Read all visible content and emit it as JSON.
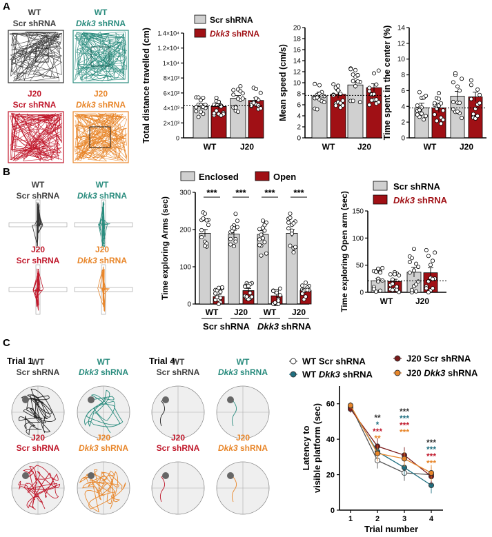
{
  "panels": {
    "A": "A",
    "B": "B",
    "C": "C"
  },
  "colors": {
    "wt_scr": "#404040",
    "wt_dkk": "#2a8c7e",
    "j20_scr": "#c0182b",
    "j20_dkk": "#e8862a",
    "bar_grey": "#d0d0d0",
    "bar_red": "#a01015",
    "c_wt_dkk": "#1f6f80",
    "c_j20_scr": "#7b1a1a"
  },
  "groups": {
    "wt": "WT",
    "j20": "J20",
    "scr": "Scr shRNA",
    "dkk_name": "Dkk3",
    "dkk_suffix": " shRNA"
  },
  "panelA": {
    "legend": {
      "scr": "Scr shRNA",
      "dkk_name": "Dkk3",
      "dkk_suffix": " shRNA"
    },
    "x_categories": [
      "WT",
      "J20"
    ]
  },
  "panelB": {
    "legend": {
      "enclosed": "Enclosed",
      "open": "Open",
      "scr": "Scr shRNA",
      "dkk_name": "Dkk3",
      "dkk_suffix": " shRNA"
    },
    "x_categories": [
      "WT",
      "J20",
      "WT",
      "J20"
    ],
    "sub_scr": "Scr shRNA",
    "sub_dkk_name": "Dkk3",
    "sub_dkk_suffix": " shRNA",
    "sig": [
      "***",
      "***",
      "***",
      "***"
    ]
  },
  "panelC": {
    "trial1": "Trial 1",
    "trial4": "Trial 4",
    "legend": [
      {
        "label": "WT Scr shRNA",
        "color": "#ffffff"
      },
      {
        "label_a": "WT ",
        "label_b": "Dkk3",
        "label_c": " shRNA",
        "color": "#1f6f80"
      },
      {
        "label": "J20 Scr shRNA",
        "color": "#7b1a1a"
      },
      {
        "label_a": "J20 ",
        "label_b": "Dkk3",
        "label_c": " shRNA",
        "color": "#e8862a"
      }
    ],
    "sig_trial2": [
      "**",
      "*",
      "***",
      "**"
    ],
    "sig_trial3": [
      "***",
      "***",
      "***",
      "***"
    ],
    "sig_trial4": [
      "***",
      "***",
      "***",
      "***"
    ]
  },
  "chart_data": [
    {
      "type": "bar",
      "title": "",
      "ylabel": "Total distance travelled (cm)",
      "categories": [
        "WT",
        "J20"
      ],
      "series": [
        {
          "name": "Scr shRNA",
          "values": [
            4200,
            5300
          ]
        },
        {
          "name": "Dkk3 shRNA",
          "values": [
            4200,
            5000
          ]
        }
      ],
      "ylim": [
        0,
        14000
      ],
      "yticks": [
        "0",
        "2×10³",
        "4×10³",
        "6×10³",
        "8×10³",
        "1×10⁴",
        "1.2×10⁴",
        "1.4×10⁴"
      ],
      "reference_line": 4300
    },
    {
      "type": "bar",
      "title": "",
      "ylabel": "Mean speed (cm/s)",
      "categories": [
        "WT",
        "J20"
      ],
      "series": [
        {
          "name": "Scr shRNA",
          "values": [
            7.6,
            9.6
          ]
        },
        {
          "name": "Dkk3 shRNA",
          "values": [
            7.9,
            9.1
          ]
        }
      ],
      "ylim": [
        0,
        20
      ],
      "yticks": [
        "0",
        "2",
        "4",
        "6",
        "8",
        "10",
        "12",
        "14",
        "16",
        "18",
        "20"
      ],
      "reference_line": 7.7
    },
    {
      "type": "bar",
      "title": "",
      "ylabel": "Time spent in the center (%)",
      "categories": [
        "WT",
        "J20"
      ],
      "series": [
        {
          "name": "Scr shRNA",
          "values": [
            3.8,
            5.3
          ]
        },
        {
          "name": "Dkk3 shRNA",
          "values": [
            3.8,
            5.2
          ]
        }
      ],
      "ylim": [
        0,
        14
      ],
      "yticks": [
        "0",
        "2",
        "4",
        "6",
        "8",
        "10",
        "12",
        "14"
      ],
      "reference_line": 3.8
    },
    {
      "type": "bar",
      "title": "",
      "ylabel": "Time exploring Arms (sec)",
      "categories": [
        "WT Scr",
        "J20 Scr",
        "WT Dkk3",
        "J20 Dkk3"
      ],
      "series": [
        {
          "name": "Enclosed",
          "values": [
            190,
            188,
            187,
            190
          ]
        },
        {
          "name": "Open",
          "values": [
            20,
            36,
            22,
            36
          ]
        }
      ],
      "ylim": [
        0,
        300
      ],
      "yticks": [
        "0",
        "100",
        "200",
        "300"
      ]
    },
    {
      "type": "bar",
      "title": "",
      "ylabel": "Time exploring Open arm (sec)",
      "categories": [
        "WT",
        "J20"
      ],
      "series": [
        {
          "name": "Scr shRNA",
          "values": [
            21,
            37
          ]
        },
        {
          "name": "Dkk3 shRNA",
          "values": [
            20,
            36
          ]
        }
      ],
      "ylim": [
        0,
        150
      ],
      "yticks": [
        "0",
        "50",
        "100",
        "150"
      ],
      "reference_line": 21
    },
    {
      "type": "line",
      "title": "",
      "ylabel": "Latency to visible platform (sec)",
      "xlabel": "Trial number",
      "x": [
        1,
        2,
        3,
        4
      ],
      "xticks": [
        "1",
        "2",
        "3",
        "4"
      ],
      "ylim": [
        0,
        70
      ],
      "yticks": [
        "0",
        "20",
        "40",
        "60"
      ],
      "series": [
        {
          "name": "WT Scr shRNA",
          "values": [
            59,
            28,
            21,
            20
          ]
        },
        {
          "name": "WT Dkk3 shRNA",
          "values": [
            58,
            33,
            24,
            14
          ]
        },
        {
          "name": "J20 Scr shRNA",
          "values": [
            57,
            36,
            31,
            19
          ]
        },
        {
          "name": "J20 Dkk3 shRNA",
          "values": [
            59,
            32,
            29,
            21
          ]
        }
      ]
    }
  ]
}
